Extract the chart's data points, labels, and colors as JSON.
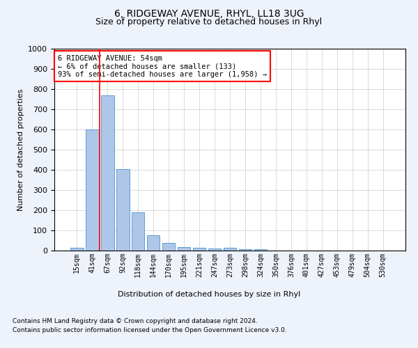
{
  "title1": "6, RIDGEWAY AVENUE, RHYL, LL18 3UG",
  "title2": "Size of property relative to detached houses in Rhyl",
  "xlabel": "Distribution of detached houses by size in Rhyl",
  "ylabel": "Number of detached properties",
  "bar_labels": [
    "15sqm",
    "41sqm",
    "67sqm",
    "92sqm",
    "118sqm",
    "144sqm",
    "170sqm",
    "195sqm",
    "221sqm",
    "247sqm",
    "273sqm",
    "298sqm",
    "324sqm",
    "350sqm",
    "376sqm",
    "401sqm",
    "427sqm",
    "453sqm",
    "479sqm",
    "504sqm",
    "530sqm"
  ],
  "bar_values": [
    15,
    600,
    770,
    405,
    190,
    77,
    38,
    18,
    15,
    12,
    15,
    8,
    7,
    0,
    0,
    0,
    0,
    0,
    0,
    0,
    0
  ],
  "bar_color": "#aec6e8",
  "bar_edgecolor": "#5a9fd4",
  "vline_x": 1.5,
  "vline_color": "red",
  "ylim": [
    0,
    1000
  ],
  "yticks": [
    0,
    100,
    200,
    300,
    400,
    500,
    600,
    700,
    800,
    900,
    1000
  ],
  "annotation_text": "6 RIDGEWAY AVENUE: 54sqm\n← 6% of detached houses are smaller (133)\n93% of semi-detached houses are larger (1,958) →",
  "annotation_box_color": "white",
  "annotation_box_edgecolor": "red",
  "footnote1": "Contains HM Land Registry data © Crown copyright and database right 2024.",
  "footnote2": "Contains public sector information licensed under the Open Government Licence v3.0.",
  "background_color": "#eef2fa",
  "plot_bg_color": "white",
  "grid_color": "#cccccc"
}
